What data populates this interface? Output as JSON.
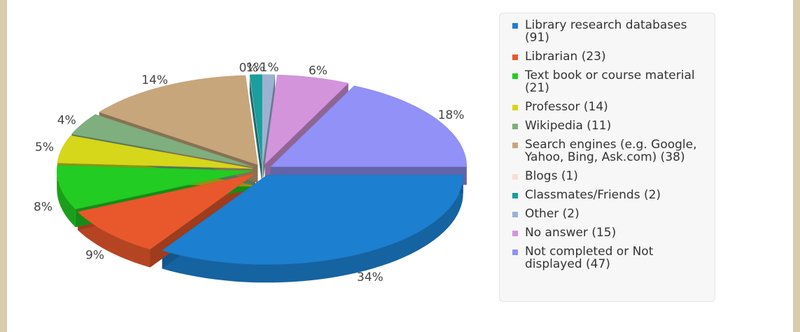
{
  "chart_data": {
    "type": "pie",
    "categories": [
      "Library research databases (91)",
      "Librarian (23)",
      "Text book or course material (21)",
      "Professor (14)",
      "Wikipedia (11)",
      "Search engines (e.g. Google, Yahoo, Bing, Ask.com) (38)",
      "Blogs (1)",
      "Classmates/Friends (2)",
      "Other (2)",
      "No answer (15)",
      "Not completed or Not displayed (47)"
    ],
    "values": [
      34,
      9,
      8,
      5,
      4,
      14,
      0,
      1,
      1,
      6,
      18
    ],
    "value_labels": [
      "34%",
      "9%",
      "8%",
      "5%",
      "4%",
      "14%",
      "0%",
      "1%",
      "1%",
      "6%",
      "18%"
    ],
    "colors": [
      "#1c7fd0",
      "#e8582c",
      "#22cc22",
      "#d6d61a",
      "#7fae7f",
      "#c8a67c",
      "#f8ddd4",
      "#1a9e9e",
      "#9cb2d2",
      "#d394dc",
      "#9191f7"
    ]
  }
}
